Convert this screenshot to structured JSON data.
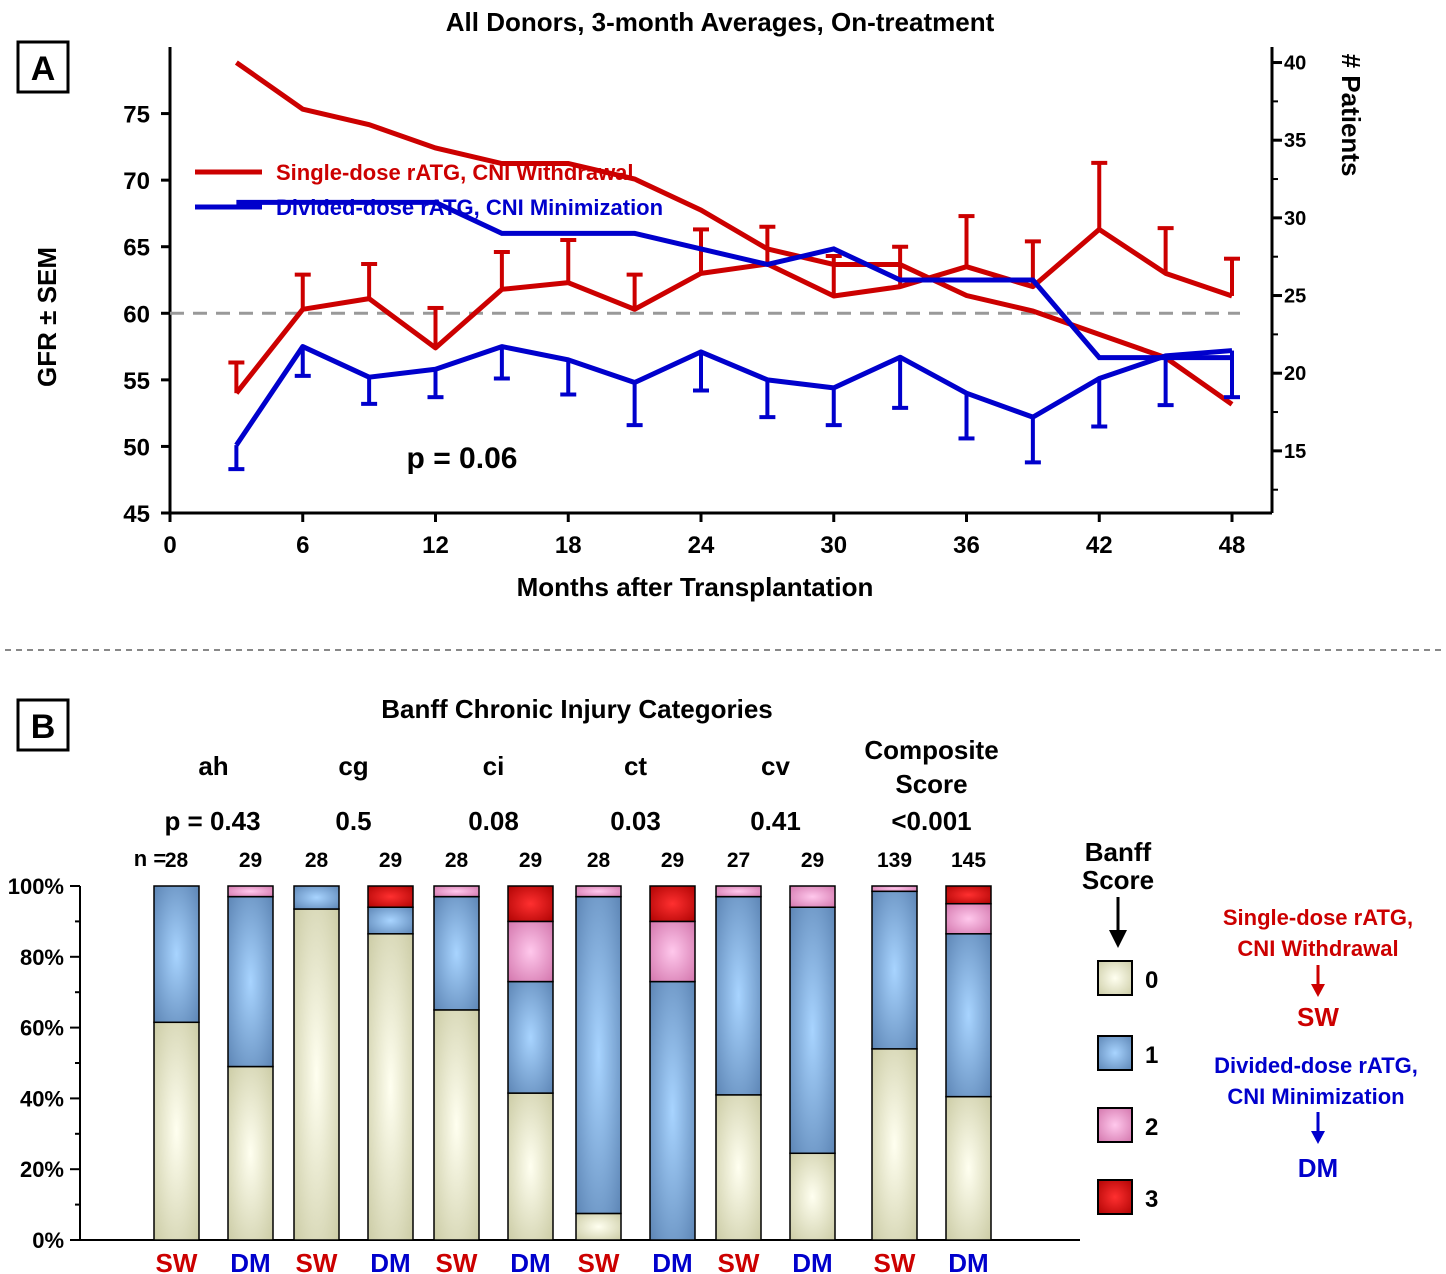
{
  "panel_a": {
    "label": "A",
    "title": "All Donors, 3-month Averages, On-treatment",
    "xlabel": "Months after Transplantation",
    "ylabel": "GFR ± SEM",
    "y2label": "# Patients",
    "pvalue": "p = 0.06"
  },
  "panel_b": {
    "label": "B",
    "title": "Banff Chronic Injury Categories",
    "n_label": "n =",
    "legend_title_1": "Banff",
    "legend_title_2": "Score",
    "legend_items": [
      "0",
      "1",
      "2",
      "3"
    ],
    "key": {
      "sw_text_1": "Single-dose rATG,",
      "sw_text_2": "CNI Withdrawal",
      "sw_abbr": "SW",
      "dm_text_1": "Divided-dose rATG,",
      "dm_text_2": "CNI Minimization",
      "dm_abbr": "DM"
    }
  },
  "colors": {
    "sw": "#cc0000",
    "dm": "#0000cc",
    "threshold": "#999999",
    "score_0": "#e6e6c0",
    "score_1": "#7eaad8",
    "score_2": "#f0a0d0",
    "score_3": "#dd0000"
  },
  "chart_data": [
    {
      "type": "line",
      "title": "All Donors, 3-month Averages, On-treatment",
      "xlabel": "Months after Transplantation",
      "ylabel": "GFR ± SEM",
      "y2label": "# Patients",
      "xlim": [
        0,
        48
      ],
      "xticks": [
        0,
        6,
        12,
        18,
        24,
        30,
        36,
        42,
        48
      ],
      "ylim": [
        45,
        80
      ],
      "yticks": [
        45,
        50,
        55,
        60,
        65,
        70,
        75
      ],
      "y2lim": [
        11,
        41
      ],
      "y2ticks": [
        15,
        20,
        25,
        30,
        35,
        40
      ],
      "reference_line": 60,
      "annotation": "p = 0.06",
      "legend_position": "upper-left",
      "x": [
        3,
        6,
        9,
        12,
        15,
        18,
        21,
        24,
        27,
        30,
        33,
        36,
        39,
        42,
        45,
        48
      ],
      "series": [
        {
          "name": "Single-dose rATG, CNI Withdrawal",
          "color": "#cc0000",
          "gfr": [
            54.0,
            60.3,
            61.1,
            57.4,
            61.8,
            62.3,
            60.3,
            63.0,
            63.7,
            61.3,
            62.0,
            63.5,
            62.0,
            66.3,
            63.0,
            61.3
          ],
          "sem": [
            2.3,
            2.6,
            2.6,
            3.0,
            2.8,
            3.2,
            2.6,
            3.3,
            2.8,
            3.0,
            3.0,
            3.8,
            3.4,
            5.0,
            3.4,
            2.8
          ],
          "patients": [
            40,
            37,
            36,
            34.5,
            33.5,
            33.5,
            32.5,
            30.5,
            28,
            27,
            27,
            25,
            24,
            22.5,
            21,
            18
          ]
        },
        {
          "name": "Divided-dose rATG, CNI Minimization",
          "color": "#0000cc",
          "gfr": [
            50.1,
            57.5,
            55.2,
            55.8,
            57.5,
            56.5,
            54.8,
            57.1,
            55.0,
            54.4,
            56.7,
            54.0,
            52.2,
            55.1,
            56.8,
            57.2
          ],
          "sem": [
            1.8,
            2.2,
            2.0,
            2.1,
            2.4,
            2.6,
            3.2,
            2.9,
            2.8,
            2.8,
            3.8,
            3.4,
            3.4,
            3.6,
            3.7,
            3.5
          ],
          "patients": [
            31,
            31,
            31,
            31,
            29,
            29,
            29,
            28,
            27,
            28,
            26,
            26,
            26,
            21,
            21,
            21
          ]
        }
      ]
    },
    {
      "type": "bar",
      "stacked": true,
      "title": "Banff Chronic Injury Categories",
      "y_axis": "percent",
      "ylim": [
        0,
        100
      ],
      "yticks": [
        "0%",
        "20%",
        "40%",
        "60%",
        "80%",
        "100%"
      ],
      "legend_title": "Banff Score",
      "legend_position": "right",
      "score_levels": [
        "0",
        "1",
        "2",
        "3"
      ],
      "groups": [
        {
          "name": "ah",
          "name2": "",
          "p": "p = 0.43",
          "bars": [
            {
              "label": "SW",
              "n": "28",
              "values": [
                61.5,
                38.5,
                0,
                0
              ]
            },
            {
              "label": "DM",
              "n": "29",
              "values": [
                49,
                48,
                3,
                0
              ]
            }
          ]
        },
        {
          "name": "cg",
          "name2": "",
          "p": "0.5",
          "bars": [
            {
              "label": "SW",
              "n": "28",
              "values": [
                93.5,
                6.5,
                0,
                0
              ]
            },
            {
              "label": "DM",
              "n": "29",
              "values": [
                86.5,
                7.5,
                0,
                6
              ]
            }
          ]
        },
        {
          "name": "ci",
          "name2": "",
          "p": "0.08",
          "bars": [
            {
              "label": "SW",
              "n": "28",
              "values": [
                65,
                32,
                3,
                0
              ]
            },
            {
              "label": "DM",
              "n": "29",
              "values": [
                41.5,
                31.5,
                17,
                10
              ]
            }
          ]
        },
        {
          "name": "ct",
          "name2": "",
          "p": "0.03",
          "bars": [
            {
              "label": "SW",
              "n": "28",
              "values": [
                7.5,
                89.5,
                3,
                0
              ]
            },
            {
              "label": "DM",
              "n": "29",
              "values": [
                0,
                73,
                17,
                10
              ]
            }
          ]
        },
        {
          "name": "cv",
          "name2": "",
          "p": "0.41",
          "bars": [
            {
              "label": "SW",
              "n": "27",
              "values": [
                41,
                56,
                3,
                0
              ]
            },
            {
              "label": "DM",
              "n": "29",
              "values": [
                24.5,
                69.5,
                6,
                0
              ]
            }
          ]
        },
        {
          "name": "Composite",
          "name2": "Score",
          "p": "<0.001",
          "bars": [
            {
              "label": "SW",
              "n": "139",
              "values": [
                54,
                44.5,
                1.5,
                0
              ]
            },
            {
              "label": "DM",
              "n": "145",
              "values": [
                40.5,
                46,
                8.5,
                5
              ]
            }
          ]
        }
      ]
    }
  ]
}
